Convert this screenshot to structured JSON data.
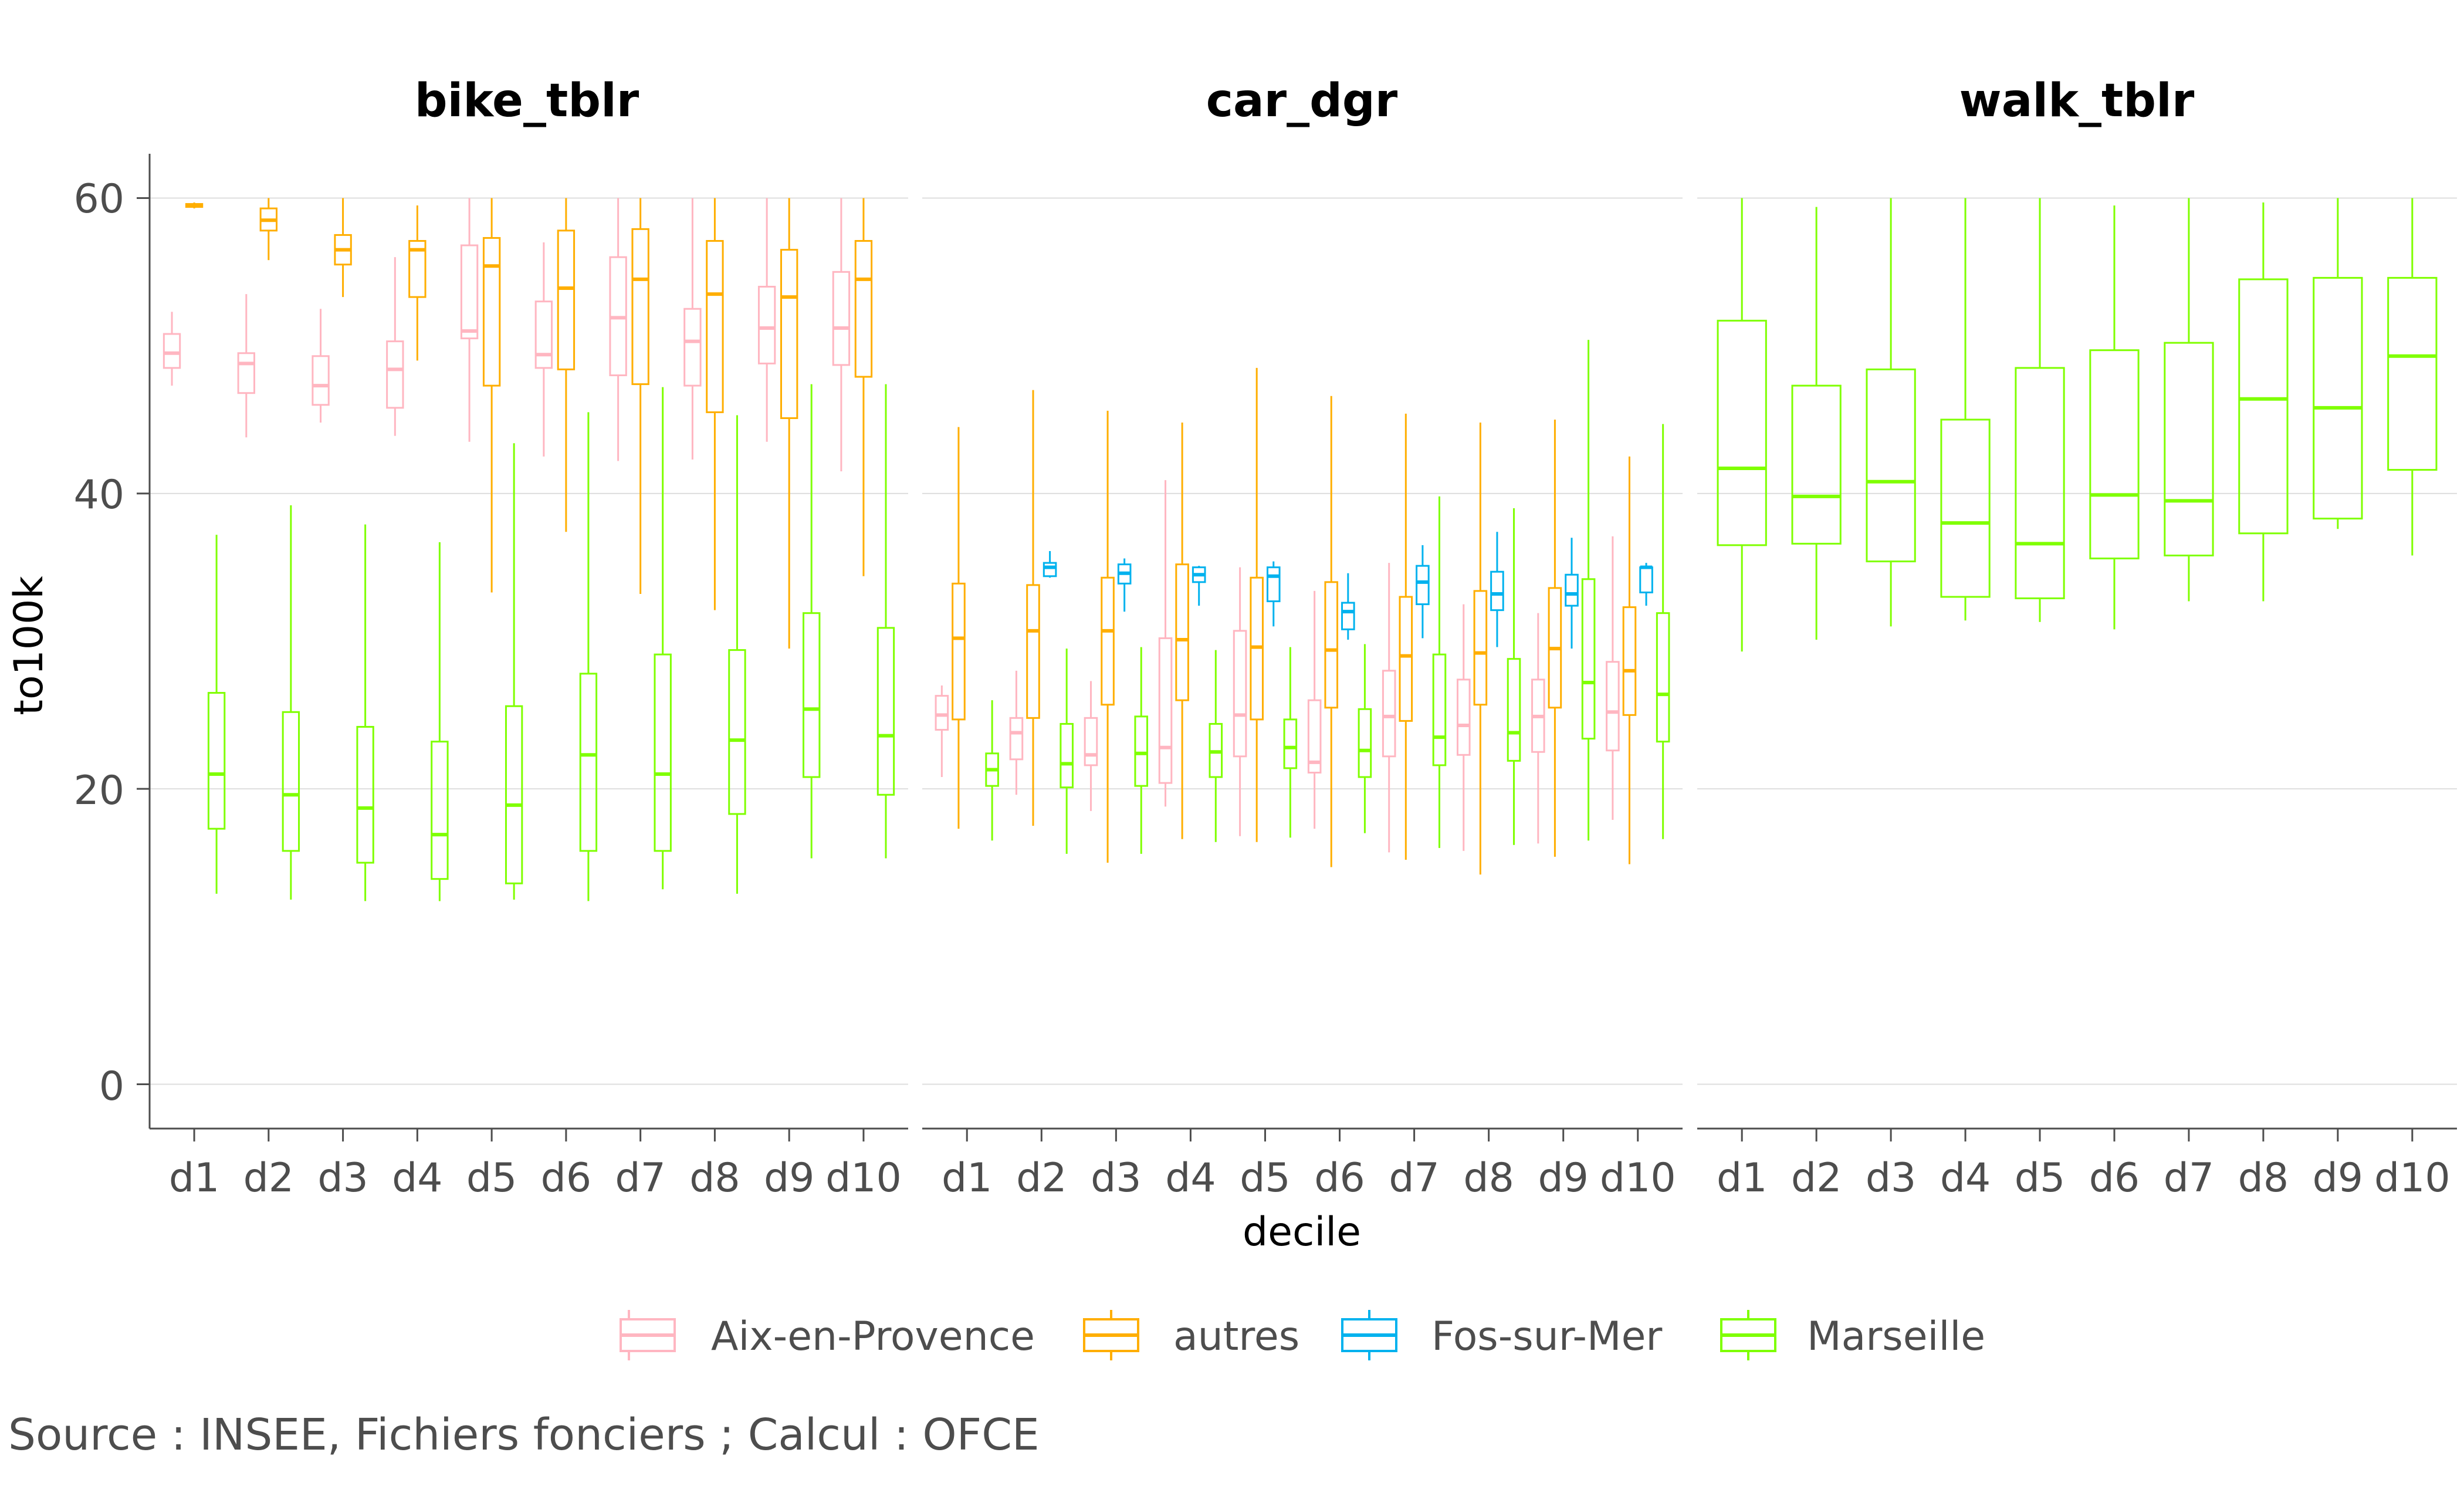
{
  "chart_data": {
    "type": "boxplot",
    "facets": [
      "bike_tblr",
      "car_dgr",
      "walk_tblr"
    ],
    "categories": [
      "d1",
      "d2",
      "d3",
      "d4",
      "d5",
      "d6",
      "d7",
      "d8",
      "d9",
      "d10"
    ],
    "xlabel": "decile",
    "ylabel": "to100k",
    "ylim": [
      -3,
      63
    ],
    "yticks": [
      0,
      20,
      40,
      60
    ],
    "grid": true,
    "legend_position": "bottom",
    "caption": "Source : INSEE, Fichiers fonciers ; Calcul : OFCE",
    "series": [
      {
        "name": "Aix-en-Provence",
        "color": "#ffb6c1"
      },
      {
        "name": "autres",
        "color": "#ffae00"
      },
      {
        "name": "Fos-sur-Mer",
        "color": "#00b2ee"
      },
      {
        "name": "Marseille",
        "color": "#7fff00"
      }
    ],
    "boxes": {
      "bike_tblr": {
        "Aix-en-Provence": [
          [
            47.3,
            48.5,
            49.5,
            50.8,
            52.3
          ],
          [
            43.8,
            46.8,
            48.8,
            49.5,
            53.5
          ],
          [
            44.8,
            46.0,
            47.3,
            49.3,
            52.5
          ],
          [
            43.9,
            45.8,
            48.4,
            50.3,
            56.0
          ],
          [
            43.5,
            50.5,
            51.0,
            56.8,
            60.0
          ],
          [
            42.5,
            48.5,
            49.4,
            53.0,
            57.0
          ],
          [
            42.2,
            48.0,
            51.9,
            56.0,
            60.0
          ],
          [
            42.3,
            47.3,
            50.3,
            52.5,
            60.0
          ],
          [
            43.5,
            48.8,
            51.2,
            54.0,
            60.0
          ],
          [
            41.5,
            48.7,
            51.2,
            55.0,
            60.0
          ]
        ],
        "autres": [
          [
            59.3,
            59.4,
            59.5,
            59.6,
            59.7
          ],
          [
            55.8,
            57.8,
            58.5,
            59.3,
            60.0
          ],
          [
            53.3,
            55.5,
            56.5,
            57.5,
            60.0
          ],
          [
            49.0,
            53.3,
            56.5,
            57.1,
            59.5
          ],
          [
            33.3,
            47.3,
            55.4,
            57.3,
            60.0
          ],
          [
            37.4,
            48.4,
            53.9,
            57.8,
            60.0
          ],
          [
            33.2,
            47.4,
            54.5,
            57.9,
            60.0
          ],
          [
            32.1,
            45.5,
            53.5,
            57.1,
            60.0
          ],
          [
            29.5,
            45.1,
            53.3,
            56.5,
            60.0
          ],
          [
            34.4,
            47.9,
            54.5,
            57.1,
            60.0
          ]
        ],
        "Marseille": [
          [
            12.9,
            17.3,
            21.0,
            26.5,
            37.2
          ],
          [
            12.5,
            15.8,
            19.6,
            25.2,
            39.2
          ],
          [
            12.4,
            15.0,
            18.7,
            24.2,
            37.9
          ],
          [
            12.4,
            13.9,
            16.9,
            23.2,
            36.7
          ],
          [
            12.5,
            13.6,
            18.9,
            25.6,
            43.4
          ],
          [
            12.4,
            15.8,
            22.3,
            27.8,
            45.5
          ],
          [
            13.2,
            15.8,
            21.0,
            29.1,
            47.2
          ],
          [
            12.9,
            18.3,
            23.3,
            29.4,
            45.3
          ],
          [
            15.3,
            20.8,
            25.4,
            31.9,
            47.4
          ],
          [
            15.3,
            19.6,
            23.6,
            30.9,
            47.4
          ]
        ]
      },
      "car_dgr": {
        "Aix-en-Provence": [
          [
            20.8,
            24.0,
            25.0,
            26.3,
            27.0
          ],
          [
            19.6,
            22.0,
            23.8,
            24.8,
            28.0
          ],
          [
            18.5,
            21.6,
            22.3,
            24.8,
            27.3
          ],
          [
            18.8,
            20.4,
            22.8,
            30.2,
            40.9
          ],
          [
            16.8,
            22.2,
            25.0,
            30.7,
            35.0
          ],
          [
            17.3,
            21.1,
            21.8,
            26.0,
            33.4
          ],
          [
            15.7,
            22.2,
            24.9,
            28.0,
            35.3
          ],
          [
            15.8,
            22.3,
            24.3,
            27.4,
            32.5
          ],
          [
            16.3,
            22.5,
            24.9,
            27.4,
            31.9
          ],
          [
            17.9,
            22.6,
            25.2,
            28.6,
            37.1
          ]
        ],
        "autres": [
          [
            17.3,
            24.7,
            30.2,
            33.9,
            44.5
          ],
          [
            17.5,
            24.8,
            30.7,
            33.8,
            47.0
          ],
          [
            15.0,
            25.7,
            30.7,
            34.3,
            45.6
          ],
          [
            16.6,
            26.0,
            30.1,
            35.2,
            44.8
          ],
          [
            16.4,
            24.7,
            29.6,
            34.3,
            48.5
          ],
          [
            14.7,
            25.5,
            29.4,
            34.0,
            46.6
          ],
          [
            15.2,
            24.6,
            29.0,
            33.0,
            45.4
          ],
          [
            14.2,
            25.7,
            29.2,
            33.4,
            44.8
          ],
          [
            15.4,
            25.5,
            29.5,
            33.6,
            45.0
          ],
          [
            14.9,
            25.0,
            28.0,
            32.3,
            42.5
          ]
        ],
        "Fos-sur-Mer": [
          [
            null,
            null,
            null,
            null,
            null
          ],
          [
            34.3,
            34.4,
            35.0,
            35.3,
            36.1
          ],
          [
            32.0,
            33.9,
            34.6,
            35.2,
            35.6
          ],
          [
            32.4,
            34.0,
            34.5,
            35.0,
            35.1
          ],
          [
            31.0,
            32.7,
            34.4,
            35.0,
            35.4
          ],
          [
            30.1,
            30.8,
            32.0,
            32.6,
            34.6
          ],
          [
            30.2,
            32.5,
            34.0,
            35.1,
            36.5
          ],
          [
            29.6,
            32.1,
            33.2,
            34.7,
            37.4
          ],
          [
            29.5,
            32.4,
            33.2,
            34.5,
            37.0
          ],
          [
            32.4,
            33.3,
            35.0,
            35.0,
            35.3
          ]
        ],
        "Marseille": [
          [
            16.5,
            20.2,
            21.3,
            22.4,
            26.0
          ],
          [
            15.6,
            20.1,
            21.7,
            24.4,
            29.5
          ],
          [
            15.6,
            20.2,
            22.4,
            24.9,
            29.6
          ],
          [
            16.4,
            20.8,
            22.5,
            24.4,
            29.4
          ],
          [
            16.7,
            21.4,
            22.8,
            24.7,
            29.6
          ],
          [
            17.0,
            20.8,
            22.6,
            25.4,
            29.8
          ],
          [
            16.0,
            21.6,
            23.5,
            29.1,
            39.8
          ],
          [
            16.2,
            21.9,
            23.8,
            28.8,
            39.0
          ],
          [
            16.5,
            23.4,
            27.2,
            34.2,
            50.4
          ],
          [
            16.6,
            23.2,
            26.4,
            31.9,
            44.7
          ]
        ]
      },
      "walk_tblr": {
        "Marseille": [
          [
            29.3,
            36.5,
            41.7,
            51.7,
            60.0
          ],
          [
            30.1,
            36.6,
            39.8,
            47.3,
            59.4
          ],
          [
            31.0,
            35.4,
            40.8,
            48.4,
            60.0
          ],
          [
            31.4,
            33.0,
            38.0,
            45.0,
            60.0
          ],
          [
            31.3,
            32.9,
            36.6,
            48.5,
            60.0
          ],
          [
            30.8,
            35.6,
            39.9,
            49.7,
            59.5
          ],
          [
            32.7,
            35.8,
            39.5,
            50.2,
            60.0
          ],
          [
            32.7,
            37.3,
            46.4,
            54.5,
            59.7
          ],
          [
            37.6,
            38.3,
            45.8,
            54.6,
            60.0
          ],
          [
            35.8,
            41.6,
            49.3,
            54.6,
            60.0
          ]
        ]
      }
    }
  },
  "facet_titles": [
    "bike_tblr",
    "car_dgr",
    "walk_tblr"
  ],
  "y_tick_labels": [
    "0",
    "20",
    "40",
    "60"
  ],
  "x_tick_labels": [
    "d1",
    "d2",
    "d3",
    "d4",
    "d5",
    "d6",
    "d7",
    "d8",
    "d9",
    "d10"
  ],
  "xlabel": "decile",
  "ylabel": "to100k",
  "legend": [
    "Aix-en-Provence",
    "autres",
    "Fos-sur-Mer",
    "Marseille"
  ],
  "caption": "Source : INSEE, Fichiers fonciers ; Calcul : OFCE"
}
